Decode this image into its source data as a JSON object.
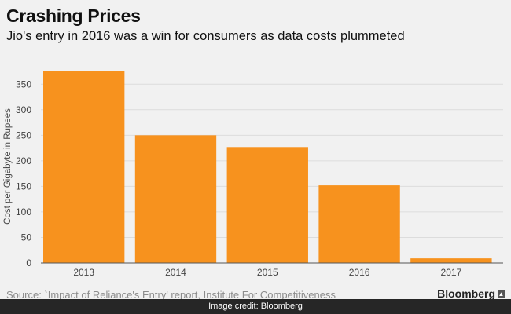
{
  "chart_data": {
    "type": "bar",
    "title": "Crashing Prices",
    "subtitle": "Jio's entry in 2016 was a win for consumers as data costs plummeted",
    "categories": [
      "2013",
      "2014",
      "2015",
      "2016",
      "2017"
    ],
    "values": [
      375,
      250,
      227,
      152,
      9
    ],
    "ylabel": "Cost per Gigabyte in Rupees",
    "xlabel": "",
    "ylim": [
      0,
      375
    ],
    "yticks": [
      0,
      50,
      100,
      150,
      200,
      250,
      300,
      350
    ],
    "grid": true,
    "bar_color": "#f7921e"
  },
  "footer": {
    "source": "Source: `Impact of Reliance's Entry' report, Institute For Competitiveness",
    "brand": "Bloomberg",
    "credit": "Image credit: Bloomberg"
  },
  "icons": {
    "brand": "bloomberg-logo-icon"
  }
}
